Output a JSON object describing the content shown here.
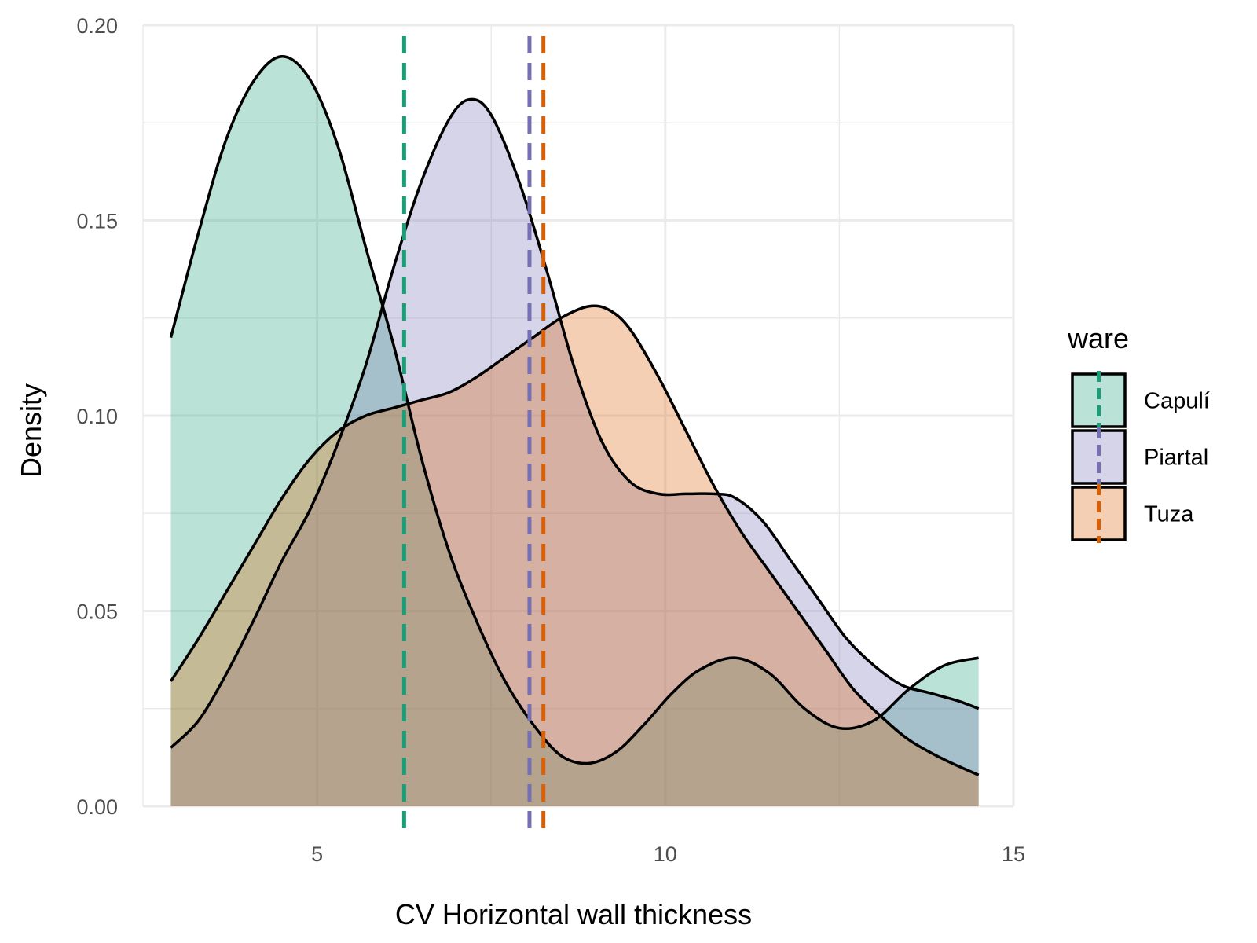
{
  "chart_data": {
    "type": "area",
    "xlabel": "CV Horizontal wall thickness",
    "ylabel": "Density",
    "xlim": [
      2.5,
      15
    ],
    "ylim": [
      0,
      0.2
    ],
    "x_ticks": [
      5,
      10,
      15
    ],
    "x_tick_labels": [
      "5",
      "10",
      "15"
    ],
    "y_ticks": [
      0,
      0.05,
      0.1,
      0.15,
      0.2
    ],
    "y_tick_labels": [
      "0.00",
      "0.05",
      "0.10",
      "0.15",
      "0.20"
    ],
    "grid": true,
    "legend": {
      "title": "ware",
      "position": "right",
      "items": [
        "Capulí",
        "Piartal",
        "Tuza"
      ]
    },
    "series": [
      {
        "name": "Capulí",
        "fill": "#1b9e77",
        "line": "#1b9e77",
        "mean": 6.25,
        "points": [
          [
            2.9,
            0.12
          ],
          [
            3.3,
            0.147
          ],
          [
            3.7,
            0.171
          ],
          [
            4.1,
            0.186
          ],
          [
            4.5,
            0.192
          ],
          [
            4.9,
            0.186
          ],
          [
            5.3,
            0.169
          ],
          [
            5.7,
            0.143
          ],
          [
            6.1,
            0.118
          ],
          [
            6.5,
            0.089
          ],
          [
            6.9,
            0.065
          ],
          [
            7.3,
            0.047
          ],
          [
            7.7,
            0.032
          ],
          [
            8.1,
            0.021
          ],
          [
            8.5,
            0.013
          ],
          [
            8.9,
            0.011
          ],
          [
            9.3,
            0.014
          ],
          [
            9.7,
            0.021
          ],
          [
            10.1,
            0.029
          ],
          [
            10.5,
            0.035
          ],
          [
            11.0,
            0.038
          ],
          [
            11.5,
            0.034
          ],
          [
            12.0,
            0.025
          ],
          [
            12.5,
            0.02
          ],
          [
            13.0,
            0.022
          ],
          [
            13.5,
            0.03
          ],
          [
            14.0,
            0.036
          ],
          [
            14.5,
            0.038
          ]
        ]
      },
      {
        "name": "Piartal",
        "fill": "#7570b3",
        "line": "#7570b3",
        "mean": 8.05,
        "points": [
          [
            2.9,
            0.015
          ],
          [
            3.3,
            0.022
          ],
          [
            3.7,
            0.034
          ],
          [
            4.1,
            0.048
          ],
          [
            4.5,
            0.063
          ],
          [
            4.9,
            0.076
          ],
          [
            5.3,
            0.093
          ],
          [
            5.7,
            0.113
          ],
          [
            6.1,
            0.138
          ],
          [
            6.5,
            0.16
          ],
          [
            6.9,
            0.176
          ],
          [
            7.2,
            0.181
          ],
          [
            7.5,
            0.177
          ],
          [
            7.9,
            0.16
          ],
          [
            8.3,
            0.137
          ],
          [
            8.7,
            0.112
          ],
          [
            9.1,
            0.093
          ],
          [
            9.5,
            0.083
          ],
          [
            9.9,
            0.08
          ],
          [
            10.3,
            0.08
          ],
          [
            10.7,
            0.08
          ],
          [
            11.0,
            0.079
          ],
          [
            11.4,
            0.073
          ],
          [
            11.8,
            0.063
          ],
          [
            12.2,
            0.053
          ],
          [
            12.6,
            0.043
          ],
          [
            13.0,
            0.036
          ],
          [
            13.4,
            0.031
          ],
          [
            13.8,
            0.029
          ],
          [
            14.2,
            0.027
          ],
          [
            14.5,
            0.025
          ]
        ]
      },
      {
        "name": "Tuza",
        "fill": "#d95f02",
        "line": "#d95f02",
        "mean": 8.25,
        "points": [
          [
            2.9,
            0.032
          ],
          [
            3.3,
            0.043
          ],
          [
            3.7,
            0.055
          ],
          [
            4.1,
            0.067
          ],
          [
            4.5,
            0.079
          ],
          [
            4.9,
            0.089
          ],
          [
            5.3,
            0.096
          ],
          [
            5.7,
            0.1
          ],
          [
            6.1,
            0.102
          ],
          [
            6.5,
            0.104
          ],
          [
            6.9,
            0.106
          ],
          [
            7.3,
            0.11
          ],
          [
            7.7,
            0.115
          ],
          [
            8.1,
            0.12
          ],
          [
            8.5,
            0.125
          ],
          [
            8.9,
            0.128
          ],
          [
            9.2,
            0.127
          ],
          [
            9.5,
            0.122
          ],
          [
            9.9,
            0.11
          ],
          [
            10.3,
            0.096
          ],
          [
            10.7,
            0.082
          ],
          [
            11.1,
            0.07
          ],
          [
            11.5,
            0.06
          ],
          [
            11.9,
            0.05
          ],
          [
            12.3,
            0.04
          ],
          [
            12.7,
            0.03
          ],
          [
            13.1,
            0.023
          ],
          [
            13.5,
            0.017
          ],
          [
            14.0,
            0.012
          ],
          [
            14.5,
            0.008
          ]
        ]
      }
    ]
  }
}
